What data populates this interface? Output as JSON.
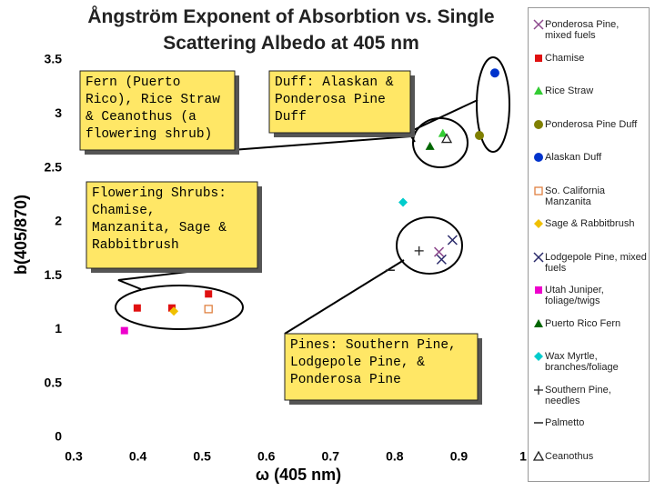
{
  "chart_data": {
    "type": "scatter",
    "title": "Ångström Exponent of Absorbtion vs. Single Scattering Albedo at 405 nm",
    "x_label": "ω (405 nm)",
    "y_label": "b(405/870)",
    "xlim": [
      0.3,
      1
    ],
    "xticks": [
      0.3,
      0.4,
      0.5,
      0.6,
      0.7,
      0.8,
      0.9,
      1
    ],
    "ylim": [
      0,
      3.5
    ],
    "yticks": [
      0,
      0.5,
      1,
      1.5,
      2,
      2.5,
      3,
      3.5
    ],
    "series": [
      {
        "name": "Ponderosa Pine, mixed fuels",
        "color": "#8e4a8e",
        "marker": "x",
        "x": [
          0.869
        ],
        "values": [
          1.72
        ]
      },
      {
        "name": "Chamise",
        "color": "#e01010",
        "marker": "square",
        "x": [
          0.399,
          0.453,
          0.51
        ],
        "values": [
          1.2,
          1.2,
          1.33
        ]
      },
      {
        "name": "Rice Straw",
        "color": "#33cc33",
        "marker": "triangle",
        "x": [
          0.875
        ],
        "values": [
          2.82
        ]
      },
      {
        "name": "Ponderosa Pine Duff",
        "color": "#808000",
        "marker": "circle",
        "x": [
          0.932
        ],
        "values": [
          2.8
        ]
      },
      {
        "name": "Alaskan Duff",
        "color": "#0033cc",
        "marker": "circle",
        "x": [
          0.956
        ],
        "values": [
          3.38
        ]
      },
      {
        "name": "So. California Manzanita",
        "color": "#e08040",
        "marker": "open-square",
        "x": [
          0.51
        ],
        "values": [
          1.19
        ]
      },
      {
        "name": "Sage & Rabbitbrush",
        "color": "#f0c000",
        "marker": "diamond",
        "x": [
          0.456
        ],
        "values": [
          1.17
        ]
      },
      {
        "name": "Lodgepole Pine, mixed fuels",
        "color": "#2a2a6a",
        "marker": "x",
        "x": [
          0.89,
          0.873
        ],
        "values": [
          1.83,
          1.65
        ]
      },
      {
        "name": "Utah Juniper, foliage/twigs",
        "color": "#ee00cc",
        "marker": "square",
        "x": [
          0.379
        ],
        "values": [
          0.99
        ]
      },
      {
        "name": "Puerto Rico Fern",
        "color": "#006600",
        "marker": "triangle",
        "x": [
          0.855
        ],
        "values": [
          2.7
        ]
      },
      {
        "name": "Wax Myrtle, branches/foliage",
        "color": "#00cccc",
        "marker": "diamond",
        "x": [
          0.813
        ],
        "values": [
          2.18
        ]
      },
      {
        "name": "Southern Pine, needles",
        "color": "#222222",
        "marker": "plus",
        "x": [
          0.838
        ],
        "values": [
          1.73
        ]
      },
      {
        "name": "Palmetto",
        "color": "#222222",
        "marker": "dash",
        "x": [
          0.793
        ],
        "values": [
          1.55
        ]
      },
      {
        "name": "Ceanothus",
        "color": "#222222",
        "marker": "open-triangle",
        "x": [
          0.881
        ],
        "values": [
          2.77
        ]
      }
    ],
    "annotations": [
      {
        "lines": [
          "Fern (Puerto",
          "Rico), Rice Straw",
          "& Ceanothus (a",
          "flowering shrub)"
        ]
      },
      {
        "lines": [
          "Duff: Alaskan &",
          "Ponderosa Pine",
          "Duff"
        ]
      },
      {
        "lines": [
          "Flowering Shrubs:",
          "Chamise,",
          "Manzanita, Sage &",
          "Rabbitbrush"
        ]
      },
      {
        "lines": [
          "Pines: Southern Pine,",
          "Lodgepole Pine, &",
          "Ponderosa Pine"
        ]
      }
    ]
  }
}
